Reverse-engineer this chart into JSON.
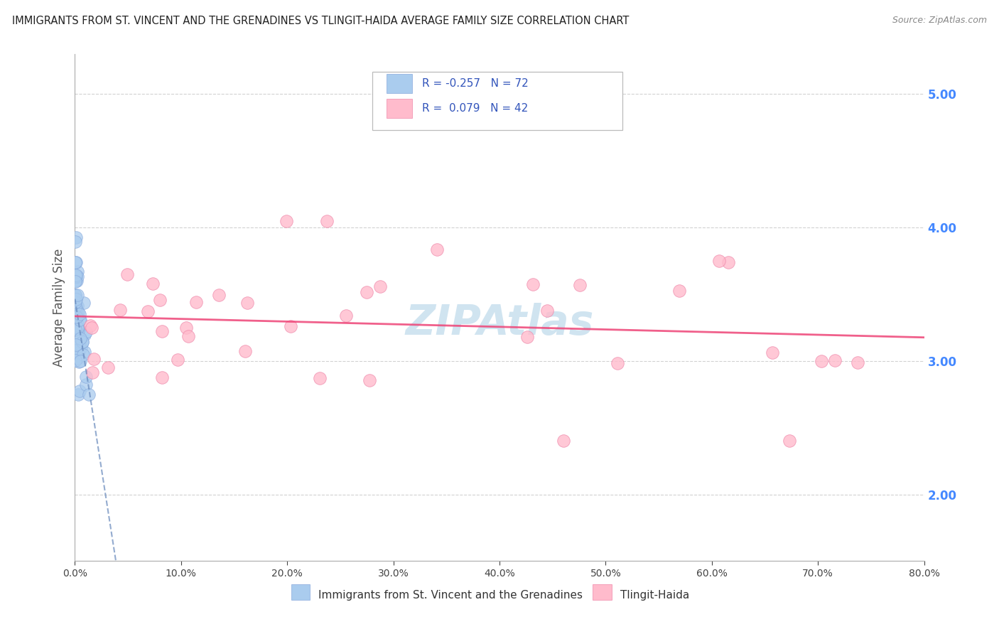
{
  "title": "IMMIGRANTS FROM ST. VINCENT AND THE GRENADINES VS TLINGIT-HAIDA AVERAGE FAMILY SIZE CORRELATION CHART",
  "source": "Source: ZipAtlas.com",
  "ylabel": "Average Family Size",
  "xlim": [
    0.0,
    0.8
  ],
  "ylim": [
    1.5,
    5.3
  ],
  "yticks_right": [
    2.0,
    3.0,
    4.0,
    5.0
  ],
  "xticks": [
    0.0,
    0.1,
    0.2,
    0.3,
    0.4,
    0.5,
    0.6,
    0.7,
    0.8
  ],
  "xtick_labels": [
    "0.0%",
    "10.0%",
    "20.0%",
    "30.0%",
    "40.0%",
    "50.0%",
    "60.0%",
    "70.0%",
    "80.0%"
  ],
  "series1_label": "Immigrants from St. Vincent and the Grenadines",
  "series1_R": -0.257,
  "series1_N": 72,
  "series1_color": "#aaccee",
  "series1_edge_color": "#88aadd",
  "series1_line_color": "#6688bb",
  "series2_label": "Tlingit-Haida",
  "series2_R": 0.079,
  "series2_N": 42,
  "series2_color": "#ffbbcc",
  "series2_edge_color": "#ee88aa",
  "series2_line_color": "#ee4477",
  "watermark_color": "#d0e4f0",
  "background_color": "#ffffff",
  "grid_color": "#cccccc",
  "title_color": "#222222",
  "axis_label_color": "#555555",
  "legend_text_color": "#333333",
  "legend_R_color": "#3355bb",
  "right_axis_color": "#4488ff",
  "source_color": "#888888"
}
